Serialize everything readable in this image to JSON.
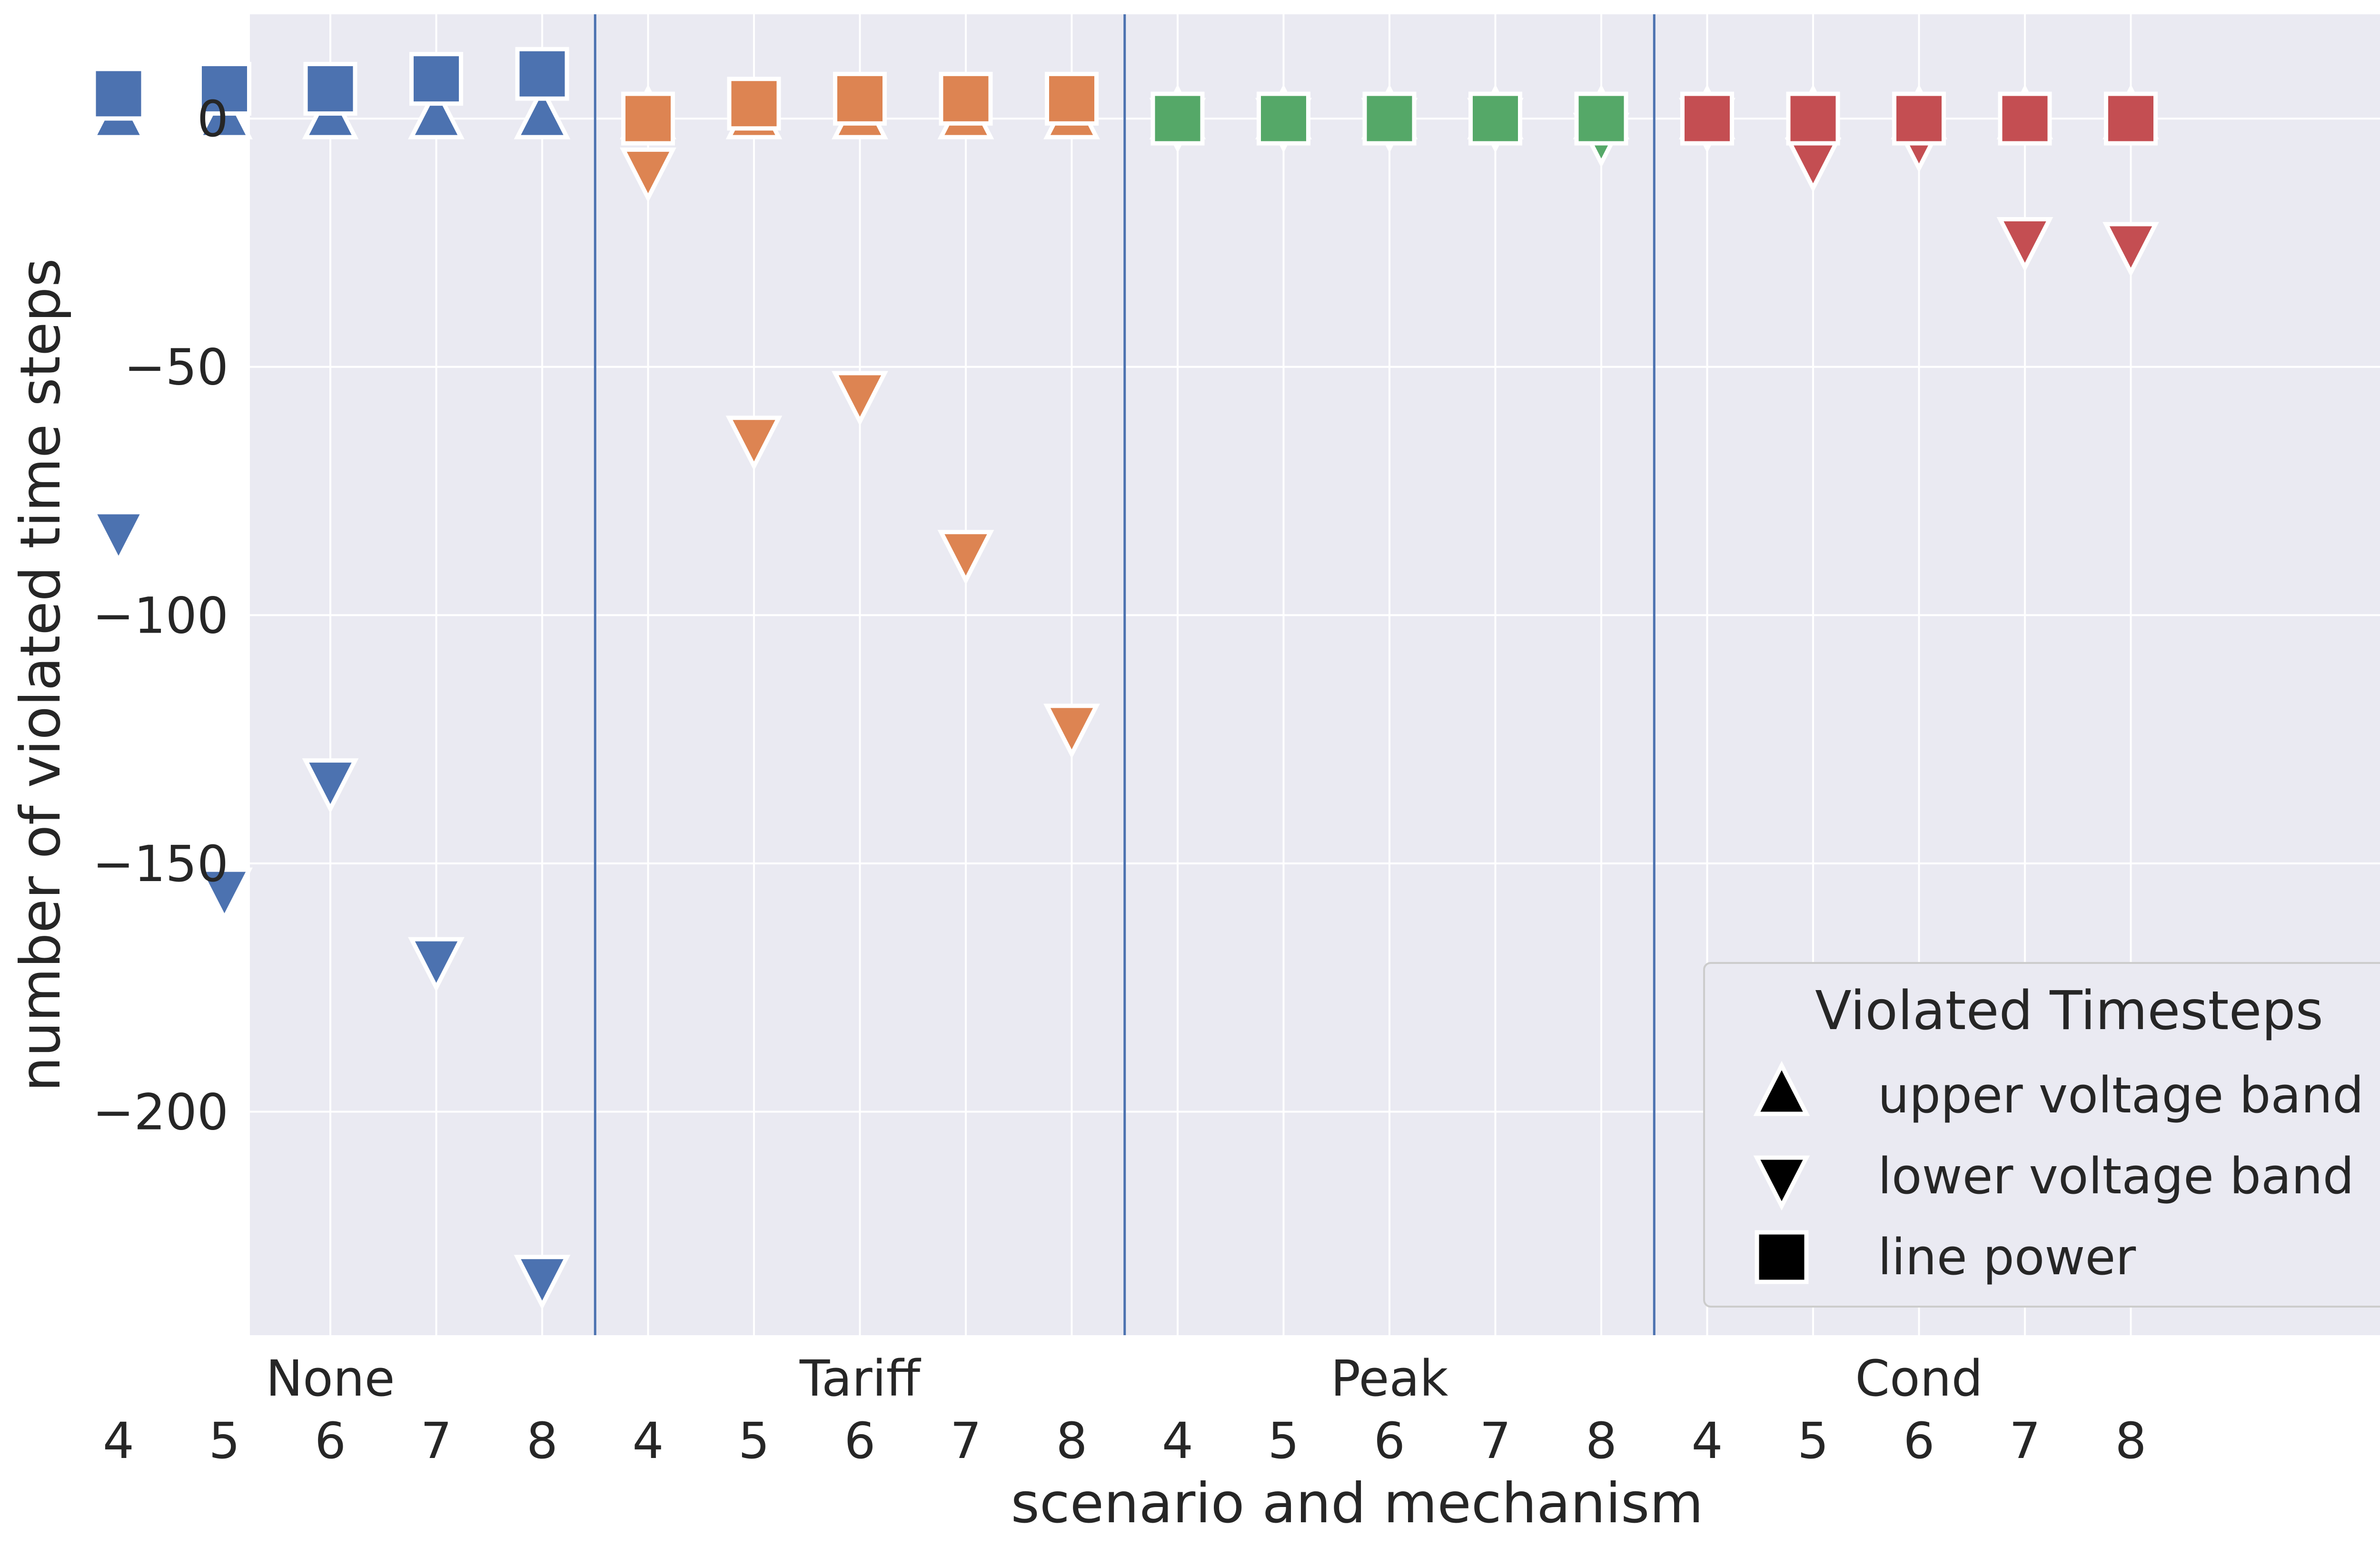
{
  "chart_data": {
    "type": "scatter",
    "xlabel": "scenario and mechanism",
    "ylabel": "number of violated time steps",
    "ylim": [
      -245,
      21
    ],
    "yticks": [
      0,
      -50,
      -100,
      -150,
      -200
    ],
    "ytick_labels": [
      "0",
      "−50",
      "−100",
      "−150",
      "−200"
    ],
    "grid": true,
    "scenario_labels": [
      "4",
      "5",
      "6",
      "7",
      "8"
    ],
    "groups": [
      {
        "name": "None",
        "color": "#4c72b0"
      },
      {
        "name": "Tariff",
        "color": "#dd8452"
      },
      {
        "name": "Peak",
        "color": "#55a868"
      },
      {
        "name": "Cond",
        "color": "#c44e52"
      }
    ],
    "series": [
      {
        "name": "upper voltage band",
        "marker": "triangle-up",
        "values": [
          [
            0,
            0,
            0,
            0,
            0
          ],
          [
            0,
            0,
            0,
            0,
            0
          ],
          [
            0,
            0,
            0,
            0,
            0
          ],
          [
            0,
            0,
            0,
            0,
            0
          ]
        ]
      },
      {
        "name": "lower voltage band",
        "marker": "triangle-down",
        "values": [
          [
            -83,
            -155,
            -133,
            -169,
            -233
          ],
          [
            -10,
            -64,
            -55,
            -87,
            -122
          ],
          [
            0,
            0,
            0,
            0,
            -3
          ],
          [
            0,
            -8,
            -4,
            -24,
            -25
          ]
        ]
      },
      {
        "name": "line power",
        "marker": "square",
        "values": [
          [
            5,
            6,
            6,
            8,
            9
          ],
          [
            0,
            3,
            4,
            4,
            4
          ],
          [
            0,
            0,
            0,
            0,
            0
          ],
          [
            0,
            0,
            0,
            0,
            0
          ]
        ]
      }
    ],
    "legend": {
      "title": "Violated Timesteps",
      "position": "lower-right",
      "entries": [
        "upper voltage band",
        "lower voltage band",
        "line power"
      ],
      "marker_color": "#000000"
    }
  }
}
